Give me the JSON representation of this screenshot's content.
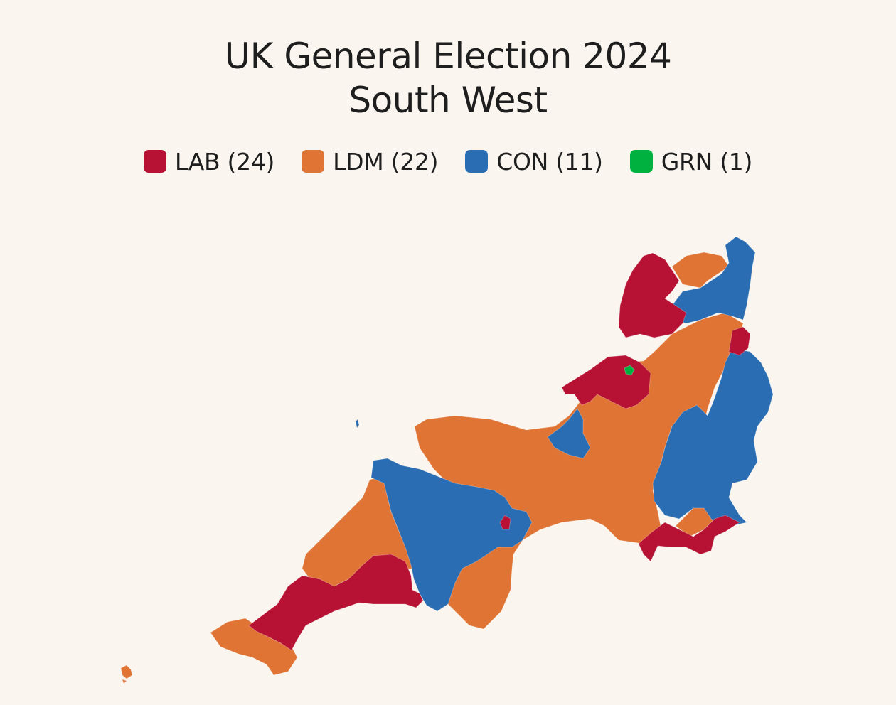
{
  "title": {
    "line1": "UK General Election 2024",
    "line2": "South West"
  },
  "legend": [
    {
      "party": "LAB",
      "label": "LAB (24)",
      "color": "#b71234"
    },
    {
      "party": "LDM",
      "label": "LDM (22)",
      "color": "#e07435"
    },
    {
      "party": "CON",
      "label": "CON (11)",
      "color": "#2a6db3"
    },
    {
      "party": "GRN",
      "label": "GRN (1)",
      "color": "#00b140"
    }
  ],
  "map": {
    "region": "South West",
    "colors": {
      "LAB": "#b71234",
      "LDM": "#e07435",
      "CON": "#2a6db3",
      "GRN": "#00b140"
    }
  }
}
